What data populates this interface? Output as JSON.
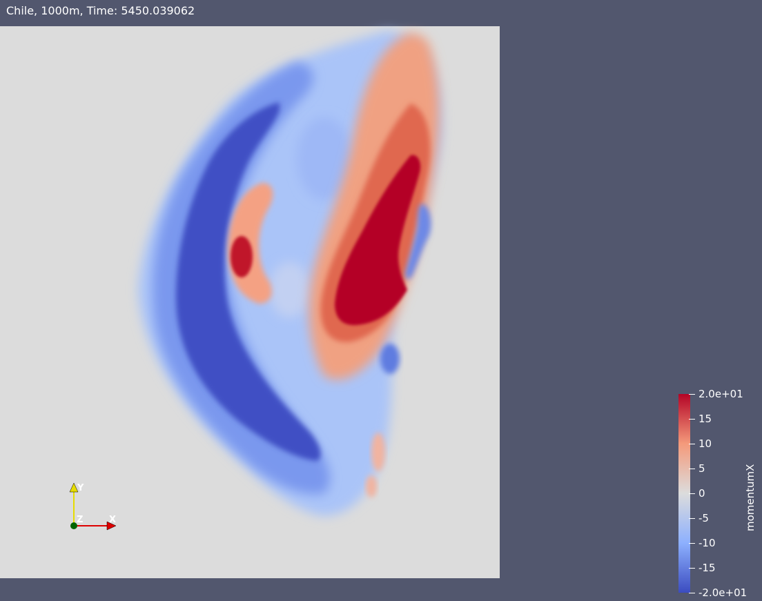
{
  "window": {
    "title": "Chile, 1000m, Time: 5450.039062"
  },
  "render_view": {
    "background_color": "#52576e",
    "domain_color": "#dcdcdc",
    "colormap": "Cool to Warm",
    "colormap_stops": [
      "#3b4cc0",
      "#8db0fe",
      "#dcdcdc",
      "#f49a7b",
      "#b40426"
    ]
  },
  "colorbar": {
    "title": "momentumX",
    "range": [
      -20,
      20
    ],
    "ticks": [
      {
        "value": 20,
        "label": "2.0e+01"
      },
      {
        "value": 15,
        "label": "15"
      },
      {
        "value": 10,
        "label": "10"
      },
      {
        "value": 5,
        "label": "5"
      },
      {
        "value": 0,
        "label": "0"
      },
      {
        "value": -5,
        "label": "-5"
      },
      {
        "value": -10,
        "label": "-10"
      },
      {
        "value": -15,
        "label": "-15"
      },
      {
        "value": -20,
        "label": "-2.0e+01"
      }
    ]
  },
  "orientation_axes": {
    "x_label": "X",
    "y_label": "Y",
    "z_label": "Z",
    "x_color": "#dd0000",
    "y_color": "#e6dc00",
    "z_color": "#006400"
  }
}
